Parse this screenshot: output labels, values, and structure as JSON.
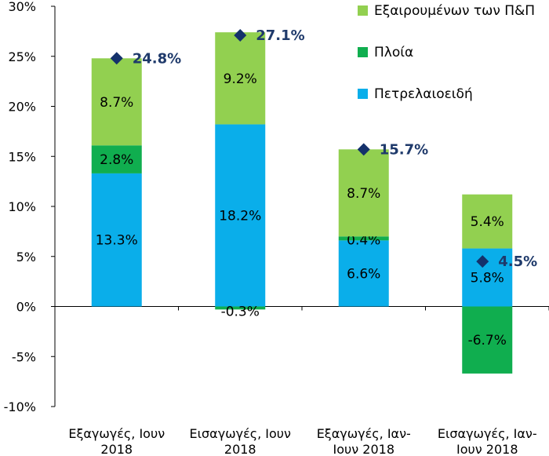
{
  "chart_data": {
    "type": "bar",
    "stacked": true,
    "categories": [
      [
        "Εξαγωγές, Ιουν",
        "2018"
      ],
      [
        "Εισαγωγές, Ιουν",
        "2018"
      ],
      [
        "Εξαγωγές, Ιαν-",
        "Ιουν 2018"
      ],
      [
        "Εισαγωγές, Ιαν-",
        "Ιουν 2018"
      ]
    ],
    "series": [
      {
        "name": "Πετρελαιοειδή",
        "color": "#0aaeea",
        "values": [
          13.3,
          18.2,
          6.6,
          5.8
        ],
        "labels": [
          "13.3%",
          "18.2%",
          "6.6%",
          "5.8%"
        ]
      },
      {
        "name": "Πλοία",
        "color": "#10ae4f",
        "values": [
          2.8,
          -0.3,
          0.4,
          -6.7
        ],
        "labels": [
          "2.8%",
          "-0.3%",
          "0.4%",
          "-6.7%"
        ]
      },
      {
        "name": "Εξαιρουμένων των Π&Π",
        "color": "#92d050",
        "values": [
          8.7,
          9.2,
          8.7,
          5.4
        ],
        "labels": [
          "8.7%",
          "9.2%",
          "8.7%",
          "5.4%"
        ]
      }
    ],
    "totals": {
      "values": [
        24.8,
        27.1,
        15.7,
        4.5
      ],
      "labels": [
        "24.8%",
        "27.1%",
        "15.7%",
        "4.5%"
      ],
      "color": "#14316b",
      "marker": "diamond"
    },
    "yticks": [
      "30%",
      "25%",
      "20%",
      "15%",
      "10%",
      "5%",
      "0%",
      "-5%",
      "-10%"
    ],
    "ylim": [
      -10,
      30
    ],
    "legend_order": [
      2,
      1,
      0
    ],
    "legend_position": "top-right",
    "grid": false
  }
}
